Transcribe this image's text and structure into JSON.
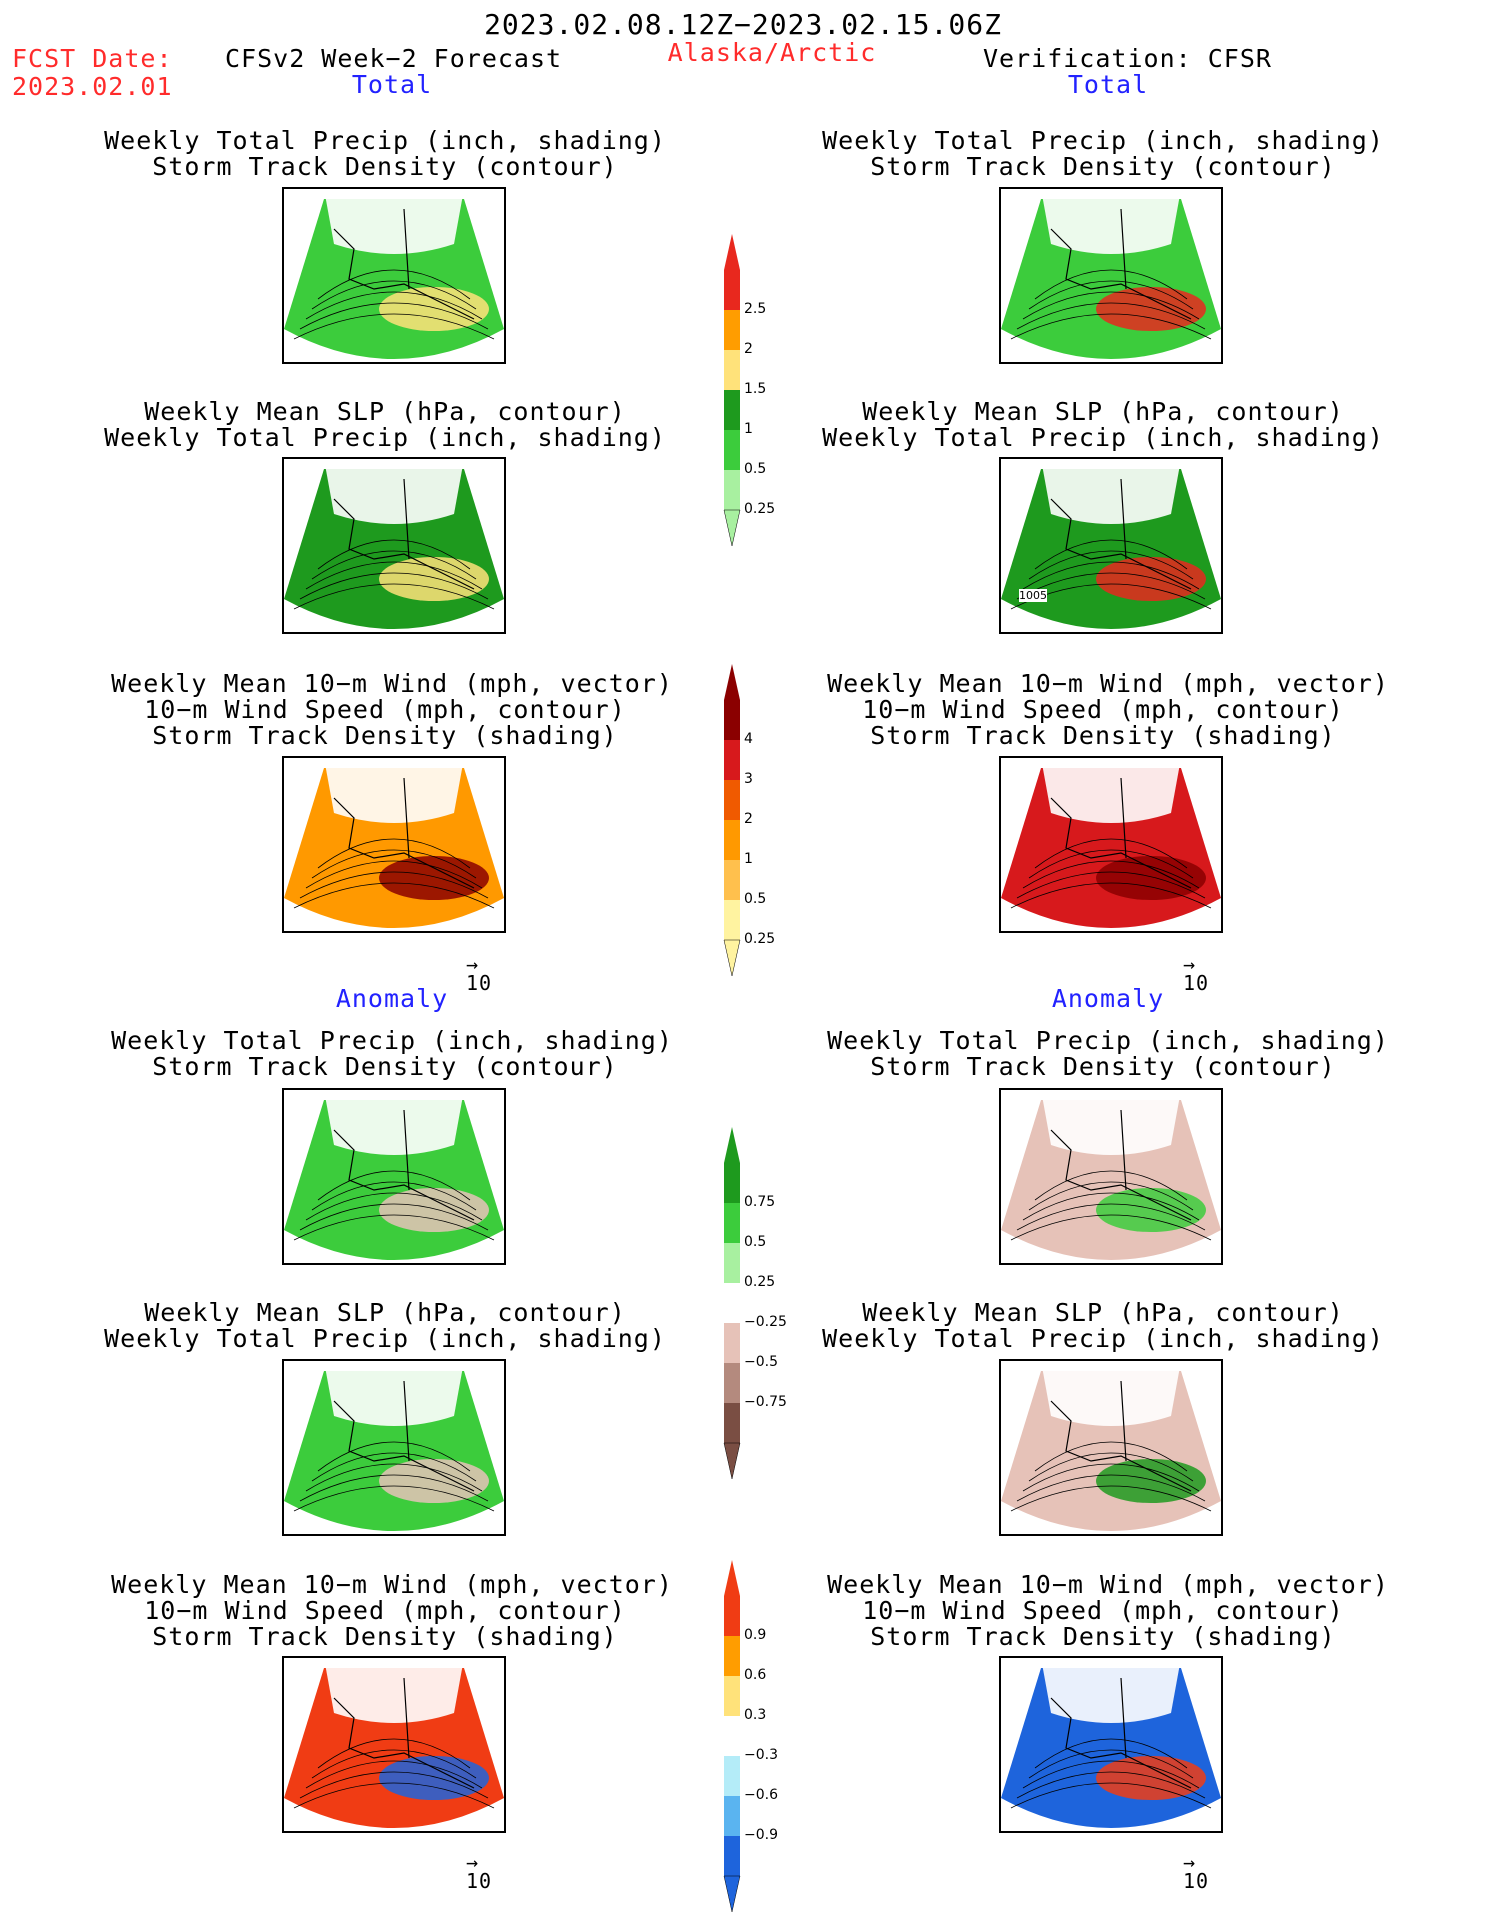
{
  "header": {
    "date_range": "2023.02.08.12Z−2023.02.15.06Z",
    "fcst_label": "FCST Date:",
    "fcst_date": "2023.02.01",
    "forecast_title": "CFSv2 Week−2 Forecast",
    "region": "Alaska/Arctic",
    "verification": "Verification: CFSR"
  },
  "sections": {
    "total": "Total",
    "anomaly": "Anomaly"
  },
  "panel_titles": {
    "precip_storm": [
      "Weekly Total Precip (inch, shading)",
      "Storm Track Density (contour)"
    ],
    "slp_precip": [
      "Weekly Mean SLP (hPa, contour)",
      "Weekly Total Precip (inch, shading)"
    ],
    "wind_storm": [
      "Weekly Mean 10−m Wind (mph, vector)",
      "10−m Wind Speed (mph, contour)",
      "Storm Track Density (shading)"
    ]
  },
  "vector_ref": "10",
  "contour_label": "1005",
  "colorbars": {
    "precip_total": {
      "labels": [
        "2.5",
        "2",
        "1.5",
        "1",
        "0.5",
        "0.25"
      ],
      "colors": [
        "#e8281e",
        "#ff9d00",
        "#ffe27a",
        "#1e9a1e",
        "#3ccc3c",
        "#a8f0a0"
      ]
    },
    "storm_total": {
      "labels": [
        "4",
        "3",
        "2",
        "1",
        "0.5",
        "0.25"
      ],
      "colors": [
        "#8b0000",
        "#d7191c",
        "#f05a00",
        "#ff9900",
        "#ffc04d",
        "#fff3a0"
      ]
    },
    "precip_anom": {
      "labels": [
        "0.75",
        "0.5",
        "0.25",
        "−0.25",
        "−0.5",
        "−0.75"
      ],
      "colors": [
        "#1e9a1e",
        "#3ccc3c",
        "#a8f0a0",
        "#ffffff",
        "#e6c2b8",
        "#b48a7e",
        "#7a4e43"
      ]
    },
    "storm_anom": {
      "labels": [
        "0.9",
        "0.6",
        "0.3",
        "−0.3",
        "−0.6",
        "−0.9"
      ],
      "colors": [
        "#f03c14",
        "#ff9d00",
        "#ffe27a",
        "#ffffff",
        "#b4ecf8",
        "#5ab4f0",
        "#1e64dc"
      ]
    }
  },
  "panels": [
    {
      "id": "total-left-1",
      "fill": "#3ccc3c",
      "accent": "#ffe27a"
    },
    {
      "id": "total-right-1",
      "fill": "#3ccc3c",
      "accent": "#e8281e"
    },
    {
      "id": "total-left-2",
      "fill": "#1e9a1e",
      "accent": "#ffe27a"
    },
    {
      "id": "total-right-2",
      "fill": "#1e9a1e",
      "accent": "#e8281e"
    },
    {
      "id": "total-left-3",
      "fill": "#ff9900",
      "accent": "#8b0000"
    },
    {
      "id": "total-right-3",
      "fill": "#d7191c",
      "accent": "#8b0000"
    },
    {
      "id": "anom-left-1",
      "fill": "#3ccc3c",
      "accent": "#e6c2b8"
    },
    {
      "id": "anom-right-1",
      "fill": "#e6c2b8",
      "accent": "#3ccc3c"
    },
    {
      "id": "anom-left-2",
      "fill": "#3ccc3c",
      "accent": "#e6c2b8"
    },
    {
      "id": "anom-right-2",
      "fill": "#e6c2b8",
      "accent": "#1e9a1e"
    },
    {
      "id": "anom-left-3",
      "fill": "#f03c14",
      "accent": "#1e64dc"
    },
    {
      "id": "anom-right-3",
      "fill": "#1e64dc",
      "accent": "#f03c14"
    }
  ]
}
